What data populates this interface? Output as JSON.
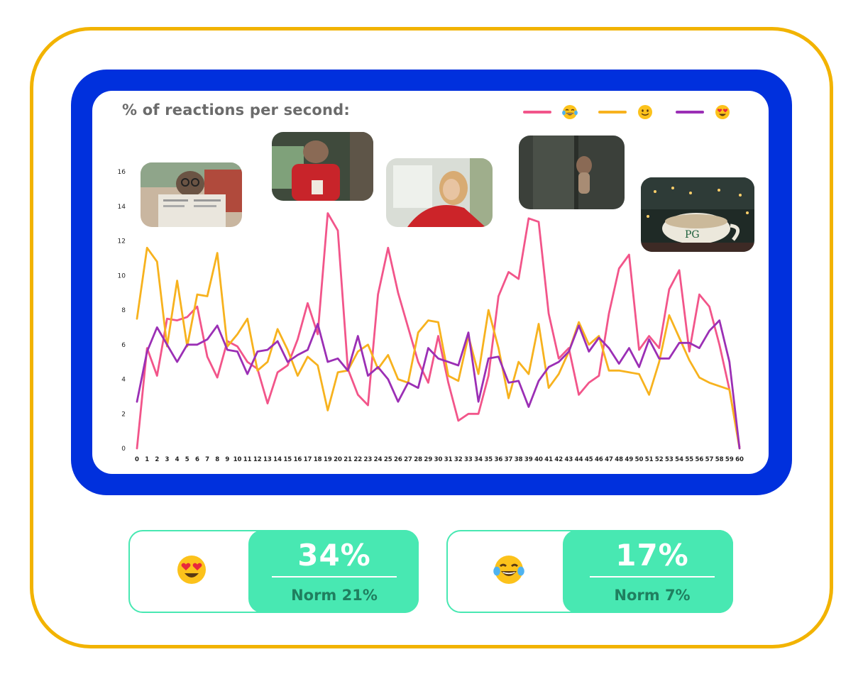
{
  "colors": {
    "frame": "#f2b300",
    "panel": "#0030dd",
    "laugh_series": "#f2558a",
    "smile_series": "#f7b21e",
    "love_series": "#9b2fb5",
    "stat_fill": "#48e8b2",
    "stat_norm_text": "#1f7f5f"
  },
  "chart_data": {
    "type": "line",
    "title": "% of reactions per second:",
    "xlabel": "",
    "ylabel": "",
    "ylim": [
      0,
      16
    ],
    "yticks": [
      0,
      2,
      4,
      6,
      8,
      10,
      12,
      14,
      16
    ],
    "xlim": [
      0,
      60
    ],
    "grid": false,
    "legend_position": "top-right",
    "series": [
      {
        "name": "😂",
        "color": "#f2558a",
        "values": [
          0,
          5.8,
          4.2,
          7.5,
          7.4,
          7.6,
          8.2,
          5.3,
          4.1,
          6.2,
          5.9,
          5.0,
          4.6,
          2.6,
          4.4,
          4.8,
          6.3,
          8.4,
          6.6,
          13.6,
          12.6,
          4.6,
          3.1,
          2.5,
          8.9,
          11.6,
          9.0,
          7.0,
          5.0,
          3.8,
          6.5,
          3.8,
          1.6,
          2.0,
          2.0,
          4.2,
          8.8,
          10.2,
          9.8,
          13.3,
          13.1,
          7.8,
          5.2,
          5.8,
          3.1,
          3.8,
          4.2,
          7.8,
          10.4,
          11.2,
          5.7,
          6.5,
          5.8,
          9.2,
          10.3,
          5.6,
          8.9,
          8.2,
          6.0,
          3.4,
          0.1
        ]
      },
      {
        "name": "🙂",
        "color": "#f7b21e",
        "values": [
          7.5,
          11.6,
          10.8,
          5.9,
          9.7,
          5.9,
          8.9,
          8.8,
          11.3,
          5.9,
          6.6,
          7.5,
          4.5,
          5.0,
          6.9,
          5.7,
          4.2,
          5.3,
          4.8,
          2.2,
          4.4,
          4.5,
          5.6,
          6.0,
          4.6,
          5.4,
          4.0,
          3.8,
          6.7,
          7.4,
          7.3,
          4.2,
          3.9,
          6.5,
          4.3,
          8.0,
          5.8,
          2.9,
          5.0,
          4.3,
          7.2,
          3.5,
          4.3,
          5.6,
          7.3,
          6.0,
          6.5,
          4.5,
          4.5,
          4.4,
          4.3,
          3.1,
          5.0,
          7.7,
          6.4,
          5.1,
          4.1,
          3.8,
          3.6,
          3.4,
          0
        ]
      },
      {
        "name": "😍",
        "color": "#9b2fb5",
        "values": [
          2.7,
          5.6,
          7.0,
          6.0,
          5.0,
          6.0,
          6.0,
          6.3,
          7.1,
          5.7,
          5.6,
          4.3,
          5.6,
          5.7,
          6.2,
          5.0,
          5.4,
          5.7,
          7.2,
          5.0,
          5.2,
          4.5,
          6.5,
          4.2,
          4.7,
          4.0,
          2.7,
          3.8,
          3.5,
          5.8,
          5.2,
          5.0,
          4.8,
          6.7,
          2.7,
          5.2,
          5.3,
          3.8,
          3.9,
          2.4,
          3.9,
          4.7,
          5.0,
          5.6,
          7.1,
          5.6,
          6.4,
          5.8,
          4.9,
          5.8,
          4.7,
          6.3,
          5.2,
          5.2,
          6.1,
          6.1,
          5.8,
          6.8,
          7.4,
          5.0,
          0
        ]
      }
    ]
  },
  "legend": {
    "items": [
      {
        "series": "😂",
        "icon": "tears-of-joy-emoji"
      },
      {
        "series": "🙂",
        "icon": "slight-smile-emoji"
      },
      {
        "series": "😍",
        "icon": "heart-eyes-emoji"
      }
    ]
  },
  "thumbnails": [
    {
      "name": "thumbnail-monkey-reading-newspaper",
      "icon": "video-still"
    },
    {
      "name": "thumbnail-monkey-in-red-jacket",
      "icon": "video-still"
    },
    {
      "name": "thumbnail-woman-in-red",
      "icon": "video-still"
    },
    {
      "name": "thumbnail-monkey-behind-door",
      "icon": "video-still"
    },
    {
      "name": "thumbnail-pg-cup-hot-tub",
      "icon": "video-still",
      "logo_text": "PG"
    }
  ],
  "stats": [
    {
      "icon": "heart-eyes-emoji",
      "value": "34%",
      "norm": "Norm 21%"
    },
    {
      "icon": "tears-of-joy-emoji",
      "value": "17%",
      "norm": "Norm 7%"
    }
  ]
}
